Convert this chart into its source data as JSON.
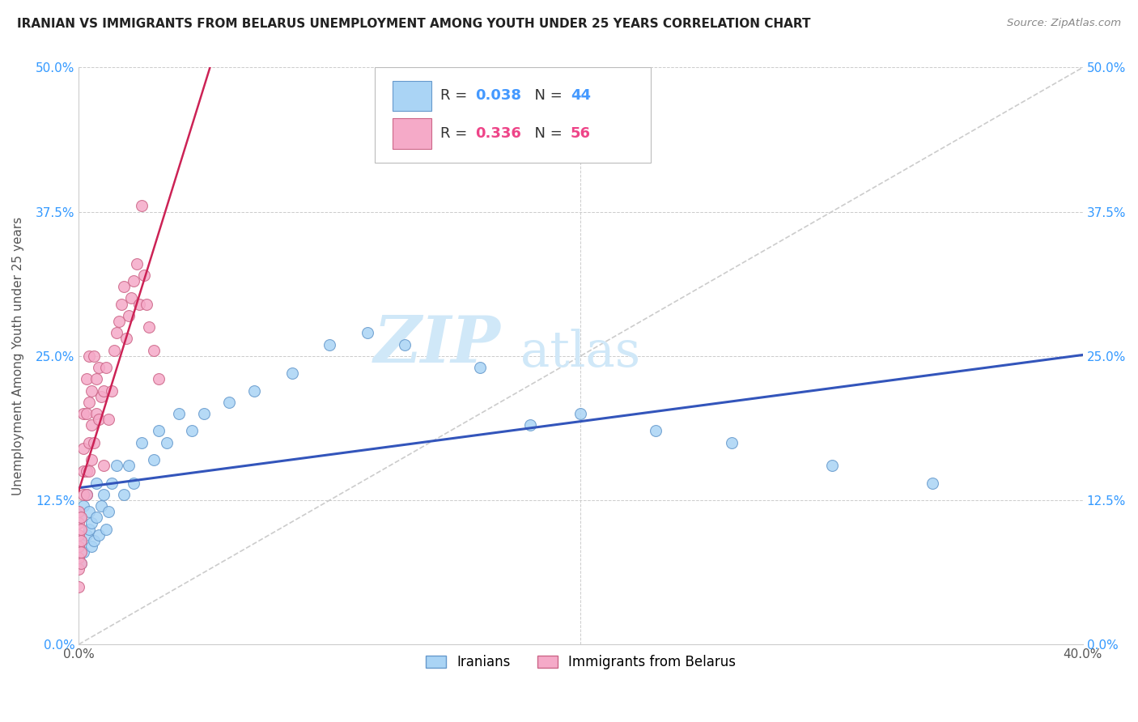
{
  "title": "IRANIAN VS IMMIGRANTS FROM BELARUS UNEMPLOYMENT AMONG YOUTH UNDER 25 YEARS CORRELATION CHART",
  "source": "Source: ZipAtlas.com",
  "ylabel": "Unemployment Among Youth under 25 years",
  "xlim": [
    0.0,
    0.4
  ],
  "ylim": [
    0.0,
    0.5
  ],
  "xlabel_ticks": [
    "0.0%",
    "40.0%"
  ],
  "xlabel_vals": [
    0.0,
    0.4
  ],
  "ylabel_ticks": [
    "0.0%",
    "12.5%",
    "25.0%",
    "37.5%",
    "50.0%"
  ],
  "ylabel_vals": [
    0.0,
    0.125,
    0.25,
    0.375,
    0.5
  ],
  "iranians_color": "#aad4f5",
  "iranians_edge_color": "#6699cc",
  "belarus_color": "#f5aac8",
  "belarus_edge_color": "#cc6688",
  "trendline_iranian_color": "#3355bb",
  "trendline_belarus_color": "#cc2255",
  "diagonal_color": "#cccccc",
  "marker_size": 100,
  "iranians_x": [
    0.001,
    0.001,
    0.001,
    0.002,
    0.002,
    0.003,
    0.003,
    0.004,
    0.004,
    0.005,
    0.005,
    0.006,
    0.007,
    0.007,
    0.008,
    0.009,
    0.01,
    0.011,
    0.012,
    0.013,
    0.015,
    0.018,
    0.02,
    0.022,
    0.025,
    0.03,
    0.032,
    0.035,
    0.04,
    0.045,
    0.05,
    0.06,
    0.07,
    0.085,
    0.1,
    0.115,
    0.13,
    0.16,
    0.18,
    0.2,
    0.23,
    0.26,
    0.3,
    0.34
  ],
  "iranians_y": [
    0.07,
    0.09,
    0.11,
    0.08,
    0.12,
    0.095,
    0.13,
    0.1,
    0.115,
    0.085,
    0.105,
    0.09,
    0.11,
    0.14,
    0.095,
    0.12,
    0.13,
    0.1,
    0.115,
    0.14,
    0.155,
    0.13,
    0.155,
    0.14,
    0.175,
    0.16,
    0.185,
    0.175,
    0.2,
    0.185,
    0.2,
    0.21,
    0.22,
    0.235,
    0.26,
    0.27,
    0.26,
    0.24,
    0.19,
    0.2,
    0.185,
    0.175,
    0.155,
    0.14
  ],
  "belarus_x": [
    0.0,
    0.0,
    0.0,
    0.0,
    0.0,
    0.0,
    0.0,
    0.001,
    0.001,
    0.001,
    0.001,
    0.001,
    0.002,
    0.002,
    0.002,
    0.002,
    0.003,
    0.003,
    0.003,
    0.003,
    0.004,
    0.004,
    0.004,
    0.004,
    0.005,
    0.005,
    0.005,
    0.006,
    0.006,
    0.007,
    0.007,
    0.008,
    0.008,
    0.009,
    0.01,
    0.01,
    0.011,
    0.012,
    0.013,
    0.014,
    0.015,
    0.016,
    0.017,
    0.018,
    0.019,
    0.02,
    0.021,
    0.022,
    0.023,
    0.024,
    0.025,
    0.026,
    0.027,
    0.028,
    0.03,
    0.032
  ],
  "belarus_y": [
    0.05,
    0.065,
    0.075,
    0.085,
    0.095,
    0.105,
    0.115,
    0.07,
    0.08,
    0.09,
    0.1,
    0.11,
    0.13,
    0.15,
    0.17,
    0.2,
    0.13,
    0.15,
    0.2,
    0.23,
    0.15,
    0.175,
    0.21,
    0.25,
    0.16,
    0.19,
    0.22,
    0.25,
    0.175,
    0.2,
    0.23,
    0.195,
    0.24,
    0.215,
    0.155,
    0.22,
    0.24,
    0.195,
    0.22,
    0.255,
    0.27,
    0.28,
    0.295,
    0.31,
    0.265,
    0.285,
    0.3,
    0.315,
    0.33,
    0.295,
    0.38,
    0.32,
    0.295,
    0.275,
    0.255,
    0.23
  ],
  "watermark_zip": "ZIP",
  "watermark_atlas": "atlas",
  "watermark_color": "#d0e8f8",
  "legend_R_iranian": "0.038",
  "legend_N_iranian": "44",
  "legend_R_belarus": "0.336",
  "legend_N_belarus": "56"
}
